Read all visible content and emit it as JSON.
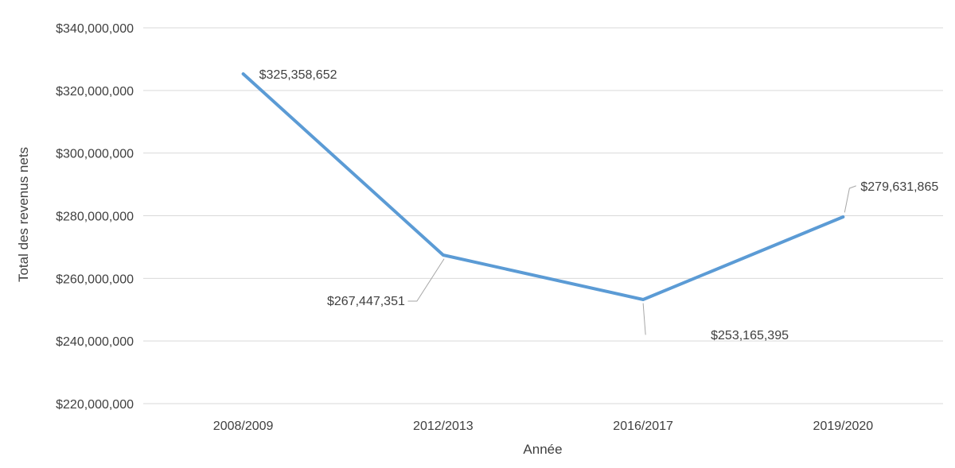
{
  "chart_data": {
    "type": "line",
    "categories": [
      "2008/2009",
      "2012/2013",
      "2016/2017",
      "2019/2020"
    ],
    "series": [
      {
        "name": "Total des revenus nets",
        "values": [
          325358652,
          267447351,
          253165395,
          279631865
        ]
      }
    ],
    "data_labels": [
      "$325,358,652",
      "$267,447,351",
      "$253,165,395",
      "$279,631,865"
    ],
    "label_positions": [
      "right",
      "below-left",
      "below-right",
      "above-right"
    ],
    "title": "",
    "xlabel": "Année",
    "ylabel": "Total des revenus nets",
    "ylim": [
      220000000,
      340000000
    ],
    "ytick_step": 20000000,
    "ytick_labels": [
      "$220,000,000",
      "$240,000,000",
      "$260,000,000",
      "$280,000,000",
      "$300,000,000",
      "$320,000,000",
      "$340,000,000"
    ],
    "grid": true,
    "legend": "none",
    "colors": {
      "line": "#5B9BD5",
      "gridline": "#D9D9D9",
      "text": "#404040",
      "leader": "#A6A6A6"
    }
  }
}
